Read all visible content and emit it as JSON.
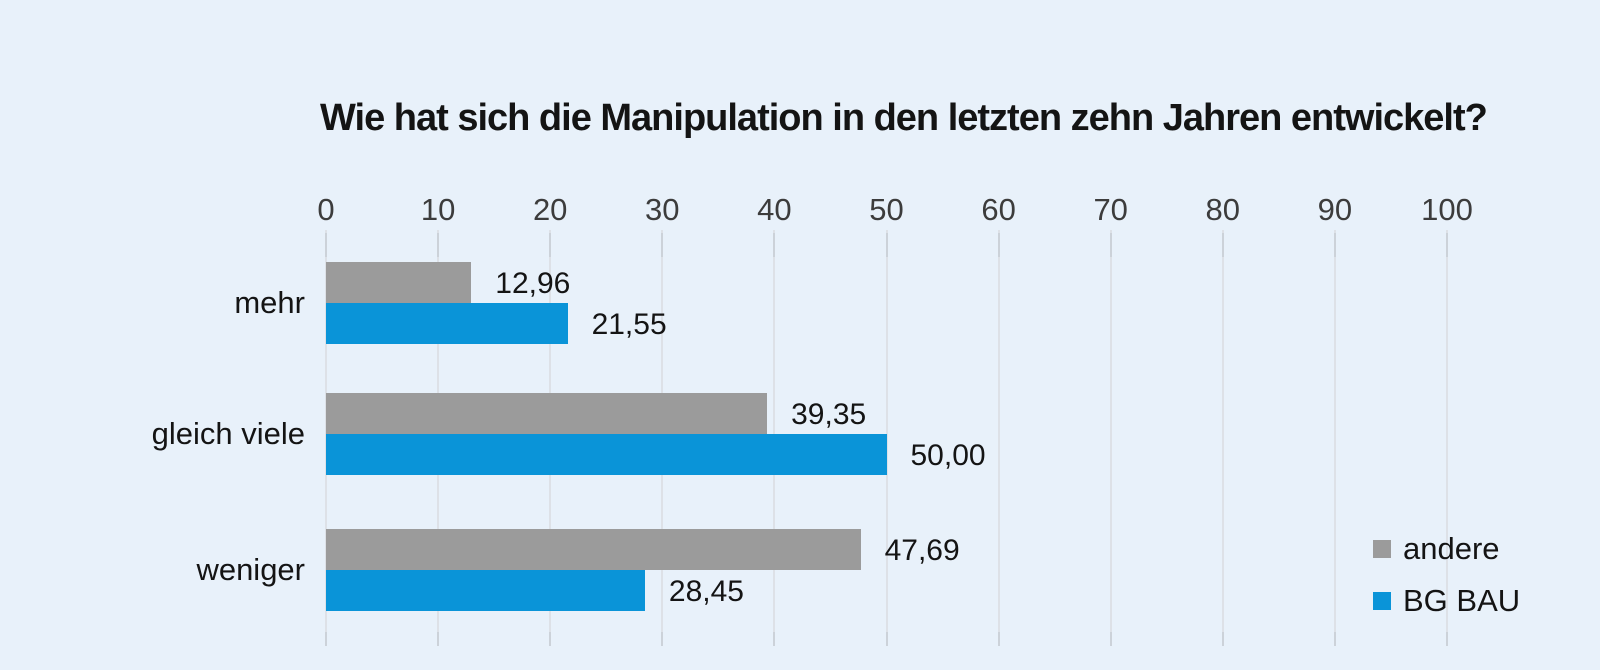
{
  "title": "Wie hat sich die Manipulation in den letzten zehn Jahren entwickelt?",
  "colors": {
    "background": "#e8f1fa",
    "grid": "#dde1e7",
    "tick": "#ccd2d9",
    "text": "#141414",
    "tick_text": "#3c3c3c",
    "series_andere": "#9b9b9b",
    "series_bg_bau": "#0a94d8"
  },
  "legend": {
    "items": [
      {
        "label": "andere",
        "color": "#9b9b9b"
      },
      {
        "label": "BG BAU",
        "color": "#0a94d8"
      }
    ]
  },
  "chart_data": {
    "type": "bar",
    "orientation": "horizontal",
    "title": "Wie hat sich die Manipulation in den letzten zehn Jahren entwickelt?",
    "categories": [
      "mehr",
      "gleich viele",
      "weniger"
    ],
    "series": [
      {
        "name": "andere",
        "color": "#9b9b9b",
        "values": [
          12.96,
          39.35,
          47.69
        ],
        "value_labels": [
          "12,96",
          "39,35",
          "47,69"
        ]
      },
      {
        "name": "BG BAU",
        "color": "#0a94d8",
        "values": [
          21.55,
          50.0,
          28.45
        ],
        "value_labels": [
          "21,55",
          "50,00",
          "28,45"
        ]
      }
    ],
    "x_ticks": [
      0,
      10,
      20,
      30,
      40,
      50,
      60,
      70,
      80,
      90,
      100
    ],
    "x_tick_labels": [
      "0",
      "10",
      "20",
      "30",
      "40",
      "50",
      "60",
      "70",
      "80",
      "90",
      "100"
    ],
    "xlim": [
      0,
      100
    ],
    "grid": true,
    "axis_position": "top",
    "legend_position": "right",
    "decimal_separator": ","
  }
}
